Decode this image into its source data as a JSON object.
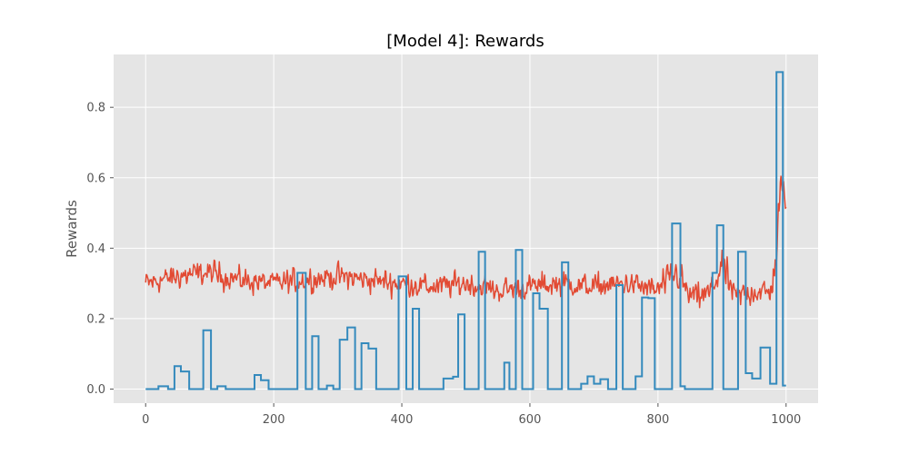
{
  "chart_data": {
    "type": "line",
    "title": "[Model 4]: Rewards",
    "xlabel": "",
    "ylabel": "Rewards",
    "xlim": [
      -50,
      1050
    ],
    "ylim": [
      -0.04,
      0.95
    ],
    "xticks": [
      0,
      200,
      400,
      600,
      800,
      1000
    ],
    "yticks": [
      0.0,
      0.2,
      0.4,
      0.6,
      0.8
    ],
    "xtick_labels": [
      "0",
      "200",
      "400",
      "600",
      "800",
      "1000"
    ],
    "ytick_labels": [
      "0.0",
      "0.2",
      "0.4",
      "0.6",
      "0.8"
    ],
    "grid": true,
    "legend": "none",
    "colors": {
      "background": "#e5e5e5",
      "grid": "#ffffff",
      "series_red": "#e24a33",
      "series_blue": "#348abd",
      "tick": "#555555"
    },
    "series": [
      {
        "color": "#e24a33",
        "style": "noisy",
        "x": [
          0,
          50,
          100,
          150,
          200,
          250,
          300,
          350,
          400,
          450,
          500,
          550,
          600,
          650,
          700,
          750,
          800,
          830,
          850,
          880,
          900,
          920,
          950,
          975,
          985,
          990,
          995,
          1000
        ],
        "values": [
          0.3,
          0.32,
          0.33,
          0.31,
          0.3,
          0.31,
          0.32,
          0.31,
          0.3,
          0.29,
          0.3,
          0.28,
          0.29,
          0.3,
          0.29,
          0.3,
          0.28,
          0.33,
          0.26,
          0.27,
          0.35,
          0.26,
          0.28,
          0.27,
          0.38,
          0.55,
          0.56,
          0.55
        ],
        "amplitude": [
          0.035,
          0.035,
          0.035,
          0.035,
          0.035,
          0.035,
          0.035,
          0.035,
          0.035,
          0.035,
          0.035,
          0.035,
          0.035,
          0.035,
          0.035,
          0.035,
          0.04,
          0.05,
          0.04,
          0.04,
          0.05,
          0.04,
          0.04,
          0.04,
          0.05,
          0.06,
          0.05,
          0.04
        ]
      },
      {
        "color": "#348abd",
        "style": "steps",
        "segments": [
          [
            0,
            20,
            0.0
          ],
          [
            20,
            35,
            0.008
          ],
          [
            35,
            45,
            0.0
          ],
          [
            45,
            55,
            0.065
          ],
          [
            55,
            68,
            0.05
          ],
          [
            68,
            90,
            0.0
          ],
          [
            90,
            102,
            0.167
          ],
          [
            102,
            112,
            0.0
          ],
          [
            112,
            125,
            0.008
          ],
          [
            125,
            170,
            0.0
          ],
          [
            170,
            180,
            0.04
          ],
          [
            180,
            192,
            0.025
          ],
          [
            192,
            237,
            0.0
          ],
          [
            237,
            250,
            0.33
          ],
          [
            250,
            260,
            0.0
          ],
          [
            260,
            270,
            0.15
          ],
          [
            270,
            283,
            0.0
          ],
          [
            283,
            293,
            0.01
          ],
          [
            293,
            303,
            0.0
          ],
          [
            303,
            315,
            0.14
          ],
          [
            315,
            327,
            0.175
          ],
          [
            327,
            337,
            0.0
          ],
          [
            337,
            348,
            0.13
          ],
          [
            348,
            360,
            0.115
          ],
          [
            360,
            395,
            0.0
          ],
          [
            395,
            407,
            0.32
          ],
          [
            407,
            417,
            0.0
          ],
          [
            417,
            427,
            0.228
          ],
          [
            427,
            465,
            0.0
          ],
          [
            465,
            480,
            0.03
          ],
          [
            480,
            488,
            0.035
          ],
          [
            488,
            498,
            0.212
          ],
          [
            498,
            520,
            0.0
          ],
          [
            520,
            530,
            0.39
          ],
          [
            530,
            540,
            0.0
          ],
          [
            540,
            560,
            0.0
          ],
          [
            560,
            568,
            0.075
          ],
          [
            568,
            578,
            0.0
          ],
          [
            578,
            588,
            0.395
          ],
          [
            588,
            605,
            0.0
          ],
          [
            605,
            615,
            0.272
          ],
          [
            615,
            628,
            0.228
          ],
          [
            628,
            638,
            0.0
          ],
          [
            638,
            650,
            0.0
          ],
          [
            650,
            660,
            0.36
          ],
          [
            660,
            680,
            0.0
          ],
          [
            680,
            690,
            0.015
          ],
          [
            690,
            700,
            0.036
          ],
          [
            700,
            710,
            0.015
          ],
          [
            710,
            722,
            0.028
          ],
          [
            722,
            735,
            0.0
          ],
          [
            735,
            745,
            0.295
          ],
          [
            745,
            765,
            0.0
          ],
          [
            765,
            775,
            0.036
          ],
          [
            775,
            785,
            0.26
          ],
          [
            785,
            795,
            0.258
          ],
          [
            795,
            822,
            0.0
          ],
          [
            822,
            835,
            0.47
          ],
          [
            835,
            842,
            0.008
          ],
          [
            842,
            858,
            0.0
          ],
          [
            858,
            885,
            0.0
          ],
          [
            885,
            892,
            0.33
          ],
          [
            892,
            902,
            0.465
          ],
          [
            902,
            912,
            0.0
          ],
          [
            912,
            925,
            0.0
          ],
          [
            925,
            937,
            0.39
          ],
          [
            937,
            947,
            0.045
          ],
          [
            947,
            960,
            0.03
          ],
          [
            960,
            975,
            0.118
          ],
          [
            975,
            985,
            0.015
          ],
          [
            985,
            995,
            0.9
          ],
          [
            995,
            1000,
            0.01
          ]
        ]
      }
    ]
  }
}
